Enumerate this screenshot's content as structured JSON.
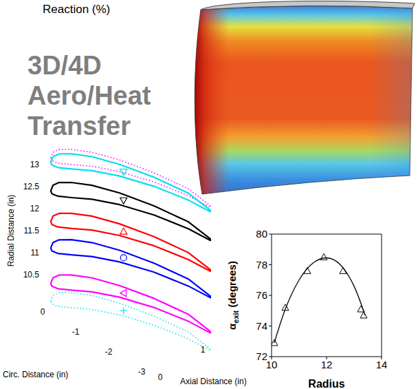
{
  "caption": "Reaction (%)",
  "title": "3D/4D Aero/Heat Transfer",
  "profile_plot": {
    "type": "line3d",
    "xlabel": "Circ. Distance (in)",
    "ylabel": "Axial Distance (in)",
    "zlabel": "Radial Distance (in)",
    "xticks": [
      0,
      -1,
      -2,
      -3
    ],
    "yticks": [
      0,
      1
    ],
    "zticks": [
      10.5,
      11,
      11.5,
      12,
      12.5,
      13
    ],
    "profile": {
      "circ": [
        0.05,
        0.15,
        0.12,
        -0.07,
        -0.46,
        -1.08,
        -1.93,
        -2.85,
        -3.61,
        -3.65,
        -3.02,
        -2.15,
        -1.36,
        -0.8,
        -0.44,
        -0.19,
        -0.04
      ],
      "axial": [
        0.1,
        0.23,
        0.35,
        0.49,
        0.67,
        0.84,
        0.99,
        1.08,
        1.01,
        0.98,
        0.95,
        0.82,
        0.62,
        0.41,
        0.21,
        0.08,
        0.06
      ]
    },
    "series": [
      {
        "radius": 13.35,
        "color": "#ff00ff",
        "line_style": "dotted",
        "marker": "none"
      },
      {
        "radius": 13.25,
        "color": "#00e0ee",
        "line_style": "solid",
        "marker": "triangle-down"
      },
      {
        "radius": 12.6,
        "color": "#000000",
        "line_style": "solid",
        "marker": "triangle-down"
      },
      {
        "radius": 11.9,
        "color": "#ff0000",
        "line_style": "solid",
        "marker": "triangle-up"
      },
      {
        "radius": 11.3,
        "color": "#0000ff",
        "line_style": "solid",
        "marker": "circle"
      },
      {
        "radius": 10.5,
        "color": "#ff00ff",
        "line_style": "solid",
        "marker": "triangle-left"
      },
      {
        "radius": 10.1,
        "color": "#00e0ee",
        "line_style": "dotted",
        "marker": "plus"
      }
    ]
  },
  "chart_data": {
    "type": "line",
    "xlabel": "Radius",
    "ylabel": "αexit (degrees)",
    "xlim": [
      10,
      14
    ],
    "ylim": [
      72,
      80
    ],
    "xticks": [
      10,
      12,
      14
    ],
    "yticks": [
      72,
      74,
      76,
      78,
      80
    ],
    "series": [
      {
        "type": "line",
        "color": "#000000",
        "x": [
          10.1,
          10.5,
          11,
          11.5,
          12,
          12.5,
          13,
          13.4
        ],
        "values": [
          72.9,
          75.1,
          77.0,
          78.1,
          78.45,
          78.0,
          76.6,
          74.7
        ]
      },
      {
        "type": "scatter",
        "marker": "triangle",
        "color": "#000000",
        "x": [
          10.1,
          10.5,
          11.3,
          11.9,
          12.6,
          13.25,
          13.35
        ],
        "values": [
          72.9,
          75.2,
          77.6,
          78.5,
          77.6,
          75.1,
          74.7
        ]
      }
    ]
  }
}
